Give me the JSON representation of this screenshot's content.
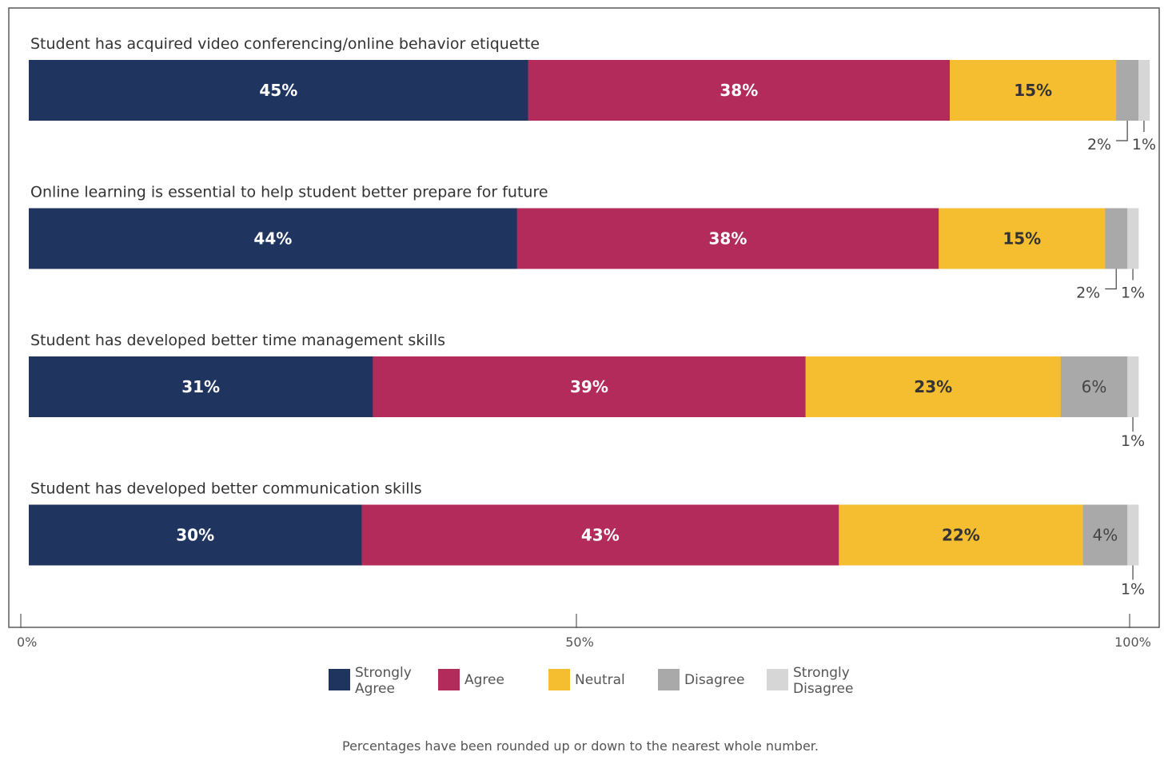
{
  "chart_data": {
    "type": "bar",
    "orientation": "horizontal",
    "stacked": true,
    "categories": [
      "Student has acquired video conferencing/online behavior etiquette",
      "Online learning is essential to help student better prepare for future",
      "Student has developed better time management skills",
      "Student has developed better communication skills"
    ],
    "series": [
      {
        "name": "Strongly Agree",
        "display_name": "Strongly\nAgree",
        "color": "#1f3560",
        "values": [
          45,
          44,
          31,
          30
        ]
      },
      {
        "name": "Agree",
        "display_name": "Agree",
        "color": "#b22b5a",
        "values": [
          38,
          38,
          39,
          43
        ]
      },
      {
        "name": "Neutral",
        "display_name": "Neutral",
        "color": "#f5bd30",
        "values": [
          15,
          15,
          23,
          22
        ]
      },
      {
        "name": "Disagree",
        "display_name": "Disagree",
        "color": "#a9a9a9",
        "values": [
          2,
          2,
          6,
          4
        ]
      },
      {
        "name": "Strongly Disagree",
        "display_name": "Strongly\nDisagree",
        "color": "#d6d6d6",
        "values": [
          1,
          1,
          1,
          1
        ]
      }
    ],
    "xlim": [
      0,
      100
    ],
    "x_ticks": [
      0,
      50,
      100
    ],
    "x_tick_labels": [
      "0%",
      "50%",
      "100%"
    ],
    "legend_position": "bottom",
    "value_suffix": "%"
  },
  "footnote": "Percentages have been rounded up or down to the nearest whole number."
}
